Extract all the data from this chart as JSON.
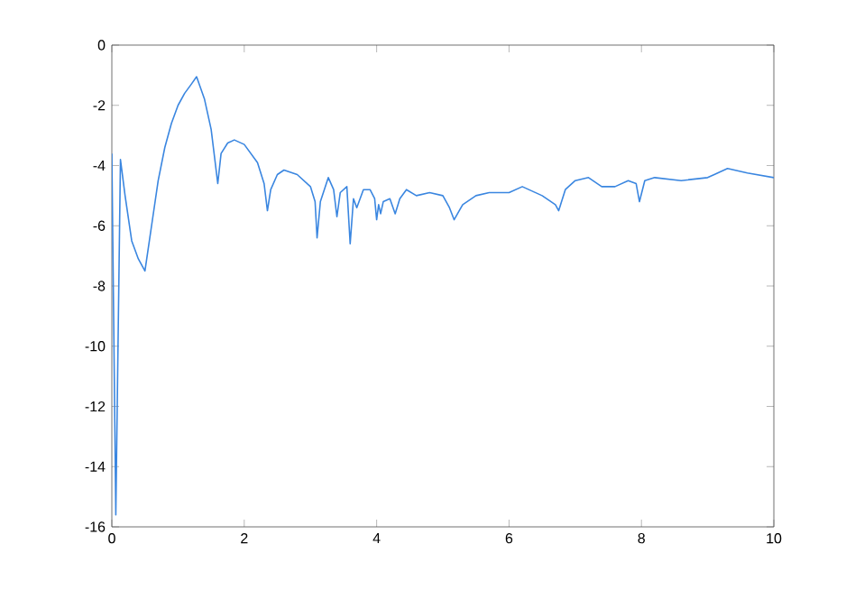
{
  "chart_data": {
    "type": "line",
    "xlim": [
      0,
      10
    ],
    "ylim": [
      -16,
      0
    ],
    "xticks": [
      0,
      2,
      4,
      6,
      8,
      10
    ],
    "yticks": [
      -16,
      -14,
      -12,
      -10,
      -8,
      -6,
      -4,
      -2,
      0
    ],
    "grid": false,
    "marker": "none",
    "line_style": "solid",
    "series": [
      {
        "color": "#3a86e0",
        "x": [
          0,
          0.06,
          0.13,
          0.2,
          0.3,
          0.4,
          0.5,
          0.6,
          0.7,
          0.8,
          0.9,
          1.0,
          1.1,
          1.2,
          1.28,
          1.4,
          1.5,
          1.6,
          1.65,
          1.75,
          1.85,
          2.0,
          2.2,
          2.3,
          2.35,
          2.4,
          2.5,
          2.6,
          2.8,
          3.0,
          3.07,
          3.1,
          3.15,
          3.27,
          3.35,
          3.4,
          3.45,
          3.55,
          3.6,
          3.65,
          3.7,
          3.8,
          3.9,
          3.97,
          4.0,
          4.03,
          4.06,
          4.1,
          4.2,
          4.28,
          4.35,
          4.45,
          4.6,
          4.8,
          5.0,
          5.1,
          5.17,
          5.3,
          5.5,
          5.7,
          6.0,
          6.2,
          6.5,
          6.7,
          6.75,
          6.85,
          7.0,
          7.2,
          7.4,
          7.6,
          7.8,
          7.92,
          7.97,
          8.05,
          8.2,
          8.6,
          9.0,
          9.1,
          9.3,
          9.6,
          10
        ],
        "values": [
          -3.6,
          -15.6,
          -3.8,
          -5,
          -6.5,
          -7.1,
          -7.5,
          -6,
          -4.5,
          -3.4,
          -2.6,
          -2,
          -1.6,
          -1.3,
          -1.05,
          -1.8,
          -2.8,
          -4.6,
          -3.6,
          -3.25,
          -3.15,
          -3.3,
          -3.9,
          -4.6,
          -5.5,
          -4.8,
          -4.3,
          -4.15,
          -4.3,
          -4.7,
          -5.2,
          -6.4,
          -5.2,
          -4.4,
          -4.8,
          -5.7,
          -4.9,
          -4.7,
          -6.6,
          -5.1,
          -5.4,
          -4.8,
          -4.8,
          -5.1,
          -5.8,
          -5.3,
          -5.6,
          -5.2,
          -5.1,
          -5.6,
          -5.1,
          -4.8,
          -5.0,
          -4.9,
          -5.0,
          -5.4,
          -5.8,
          -5.3,
          -5.0,
          -4.9,
          -4.9,
          -4.7,
          -5.0,
          -5.3,
          -5.5,
          -4.8,
          -4.5,
          -4.4,
          -4.7,
          -4.7,
          -4.5,
          -4.6,
          -5.2,
          -4.5,
          -4.4,
          -4.5,
          -4.4,
          -4.3,
          -4.1,
          -4.25,
          -4.4
        ]
      }
    ]
  }
}
